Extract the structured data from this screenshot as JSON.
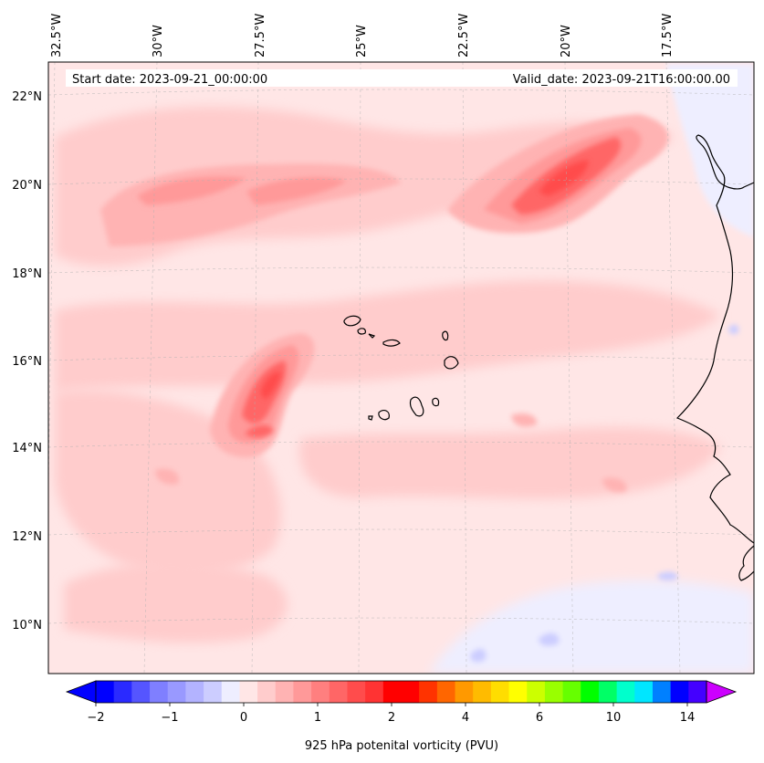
{
  "map": {
    "start_date": "Start date: 2023-09-21_00:00:00",
    "valid_date": "Valid_date: 2023-09-21T16:00:00.00",
    "lon_labels": [
      "32.5°W",
      "30°W",
      "27.5°W",
      "25°W",
      "22.5°W",
      "20°W",
      "17.5°W"
    ],
    "lat_labels": [
      "22°N",
      "20°N",
      "18°N",
      "16°N",
      "14°N",
      "12°N",
      "10°N"
    ],
    "background_color": "#ffe6e6"
  },
  "colorbar": {
    "title": "925 hPa potenital vorticity (PVU)",
    "tick_labels": [
      "−2",
      "−1",
      "0",
      "1",
      "2",
      "4",
      "6",
      "10",
      "14"
    ],
    "levels_count": 34,
    "colors": [
      "#0000ff",
      "#2a2aff",
      "#5555ff",
      "#7f7fff",
      "#9999ff",
      "#b3b3ff",
      "#cccdff",
      "#eeeeff",
      "#ffe6e6",
      "#ffcccc",
      "#ffb3b3",
      "#ff9999",
      "#ff7f7f",
      "#ff6666",
      "#ff4c4c",
      "#ff3333",
      "#ff0000",
      "#ff0000",
      "#ff3300",
      "#ff6600",
      "#ff9900",
      "#ffbb00",
      "#ffdd00",
      "#ffff00",
      "#ccff00",
      "#99ff00",
      "#66ff00",
      "#00ff00",
      "#00ff66",
      "#00ffcc",
      "#00e6ff",
      "#0080ff",
      "#0000ff",
      "#4400ff"
    ],
    "extend_min_color": "#0000ff",
    "extend_max_color": "#cc00ff"
  }
}
